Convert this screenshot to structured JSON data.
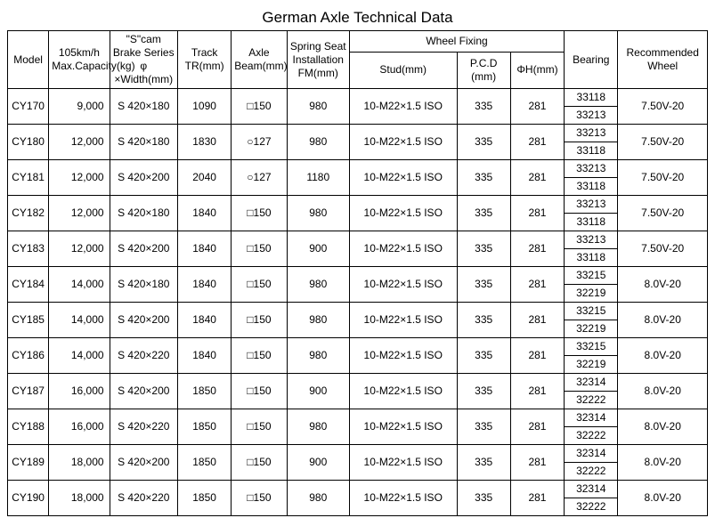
{
  "title": "German Axle Technical Data",
  "headers": {
    "model": "Model",
    "capacity": "105km/h Max.Capacity(kg)",
    "brake": "\"S\"cam Brake Series φ ×Width(mm)",
    "track": "Track TR(mm)",
    "beam": "Axle Beam(mm)",
    "spring": "Spring Seat Installation FM(mm)",
    "wheel_fixing": "Wheel Fixing",
    "stud": "Stud(mm)",
    "pcd": "P.C.D (mm)",
    "phih": "ΦH(mm)",
    "bearing": "Bearing",
    "wheel": "Recommended Wheel"
  },
  "rows": [
    {
      "model": "CY170",
      "capacity": "9,000",
      "brake": "S 420×180",
      "track": "1090",
      "beam": "□150",
      "spring": "980",
      "stud": "10-M22×1.5 ISO",
      "pcd": "335",
      "phih": "281",
      "bearing_top": "33118",
      "bearing_bot": "33213",
      "wheel": "7.50V-20"
    },
    {
      "model": "CY180",
      "capacity": "12,000",
      "brake": "S 420×180",
      "track": "1830",
      "beam": "○127",
      "spring": "980",
      "stud": "10-M22×1.5 ISO",
      "pcd": "335",
      "phih": "281",
      "bearing_top": "33213",
      "bearing_bot": "33118",
      "wheel": "7.50V-20"
    },
    {
      "model": "CY181",
      "capacity": "12,000",
      "brake": "S 420×200",
      "track": "2040",
      "beam": "○127",
      "spring": "1180",
      "stud": "10-M22×1.5 ISO",
      "pcd": "335",
      "phih": "281",
      "bearing_top": "33213",
      "bearing_bot": "33118",
      "wheel": "7.50V-20"
    },
    {
      "model": "CY182",
      "capacity": "12,000",
      "brake": "S 420×180",
      "track": "1840",
      "beam": "□150",
      "spring": "980",
      "stud": "10-M22×1.5 ISO",
      "pcd": "335",
      "phih": "281",
      "bearing_top": "33213",
      "bearing_bot": "33118",
      "wheel": "7.50V-20"
    },
    {
      "model": "CY183",
      "capacity": "12,000",
      "brake": "S 420×200",
      "track": "1840",
      "beam": "□150",
      "spring": "900",
      "stud": "10-M22×1.5 ISO",
      "pcd": "335",
      "phih": "281",
      "bearing_top": "33213",
      "bearing_bot": "33118",
      "wheel": "7.50V-20"
    },
    {
      "model": "CY184",
      "capacity": "14,000",
      "brake": "S 420×180",
      "track": "1840",
      "beam": "□150",
      "spring": "980",
      "stud": "10-M22×1.5 ISO",
      "pcd": "335",
      "phih": "281",
      "bearing_top": "33215",
      "bearing_bot": "32219",
      "wheel": "8.0V-20"
    },
    {
      "model": "CY185",
      "capacity": "14,000",
      "brake": "S 420×200",
      "track": "1840",
      "beam": "□150",
      "spring": "980",
      "stud": "10-M22×1.5 ISO",
      "pcd": "335",
      "phih": "281",
      "bearing_top": "33215",
      "bearing_bot": "32219",
      "wheel": "8.0V-20"
    },
    {
      "model": "CY186",
      "capacity": "14,000",
      "brake": "S 420×220",
      "track": "1840",
      "beam": "□150",
      "spring": "980",
      "stud": "10-M22×1.5 ISO",
      "pcd": "335",
      "phih": "281",
      "bearing_top": "33215",
      "bearing_bot": "32219",
      "wheel": "8.0V-20"
    },
    {
      "model": "CY187",
      "capacity": "16,000",
      "brake": "S 420×200",
      "track": "1850",
      "beam": "□150",
      "spring": "900",
      "stud": "10-M22×1.5 ISO",
      "pcd": "335",
      "phih": "281",
      "bearing_top": "32314",
      "bearing_bot": "32222",
      "wheel": "8.0V-20"
    },
    {
      "model": "CY188",
      "capacity": "16,000",
      "brake": "S 420×220",
      "track": "1850",
      "beam": "□150",
      "spring": "980",
      "stud": "10-M22×1.5 ISO",
      "pcd": "335",
      "phih": "281",
      "bearing_top": "32314",
      "bearing_bot": "32222",
      "wheel": "8.0V-20"
    },
    {
      "model": "CY189",
      "capacity": "18,000",
      "brake": "S 420×200",
      "track": "1850",
      "beam": "□150",
      "spring": "900",
      "stud": "10-M22×1.5 ISO",
      "pcd": "335",
      "phih": "281",
      "bearing_top": "32314",
      "bearing_bot": "32222",
      "wheel": "8.0V-20"
    },
    {
      "model": "CY190",
      "capacity": "18,000",
      "brake": "S 420×220",
      "track": "1850",
      "beam": "□150",
      "spring": "980",
      "stud": "10-M22×1.5 ISO",
      "pcd": "335",
      "phih": "281",
      "bearing_top": "32314",
      "bearing_bot": "32222",
      "wheel": "8.0V-20"
    }
  ]
}
